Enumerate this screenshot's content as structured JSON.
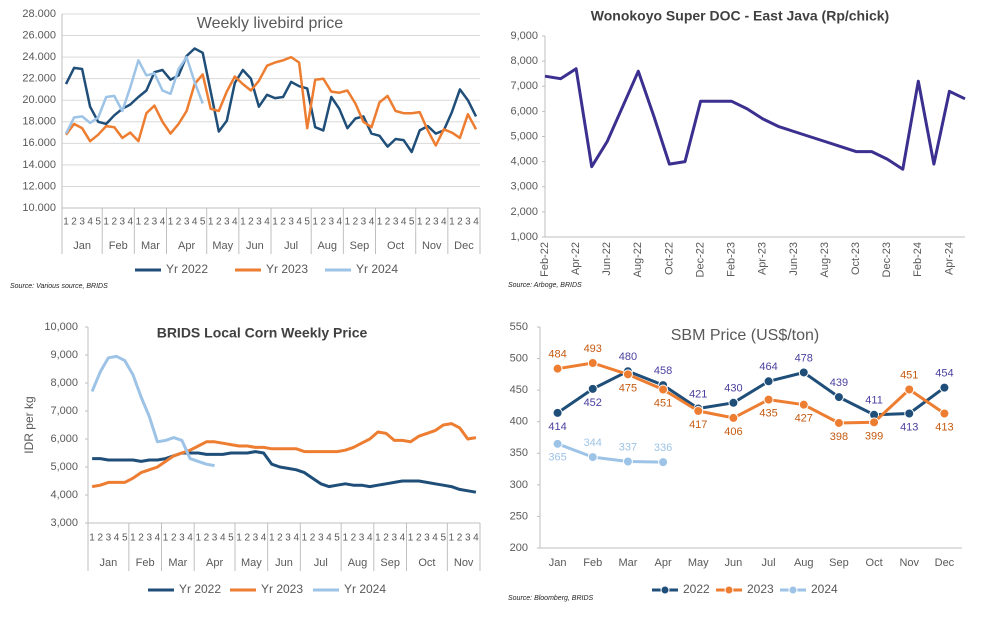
{
  "chart_data": [
    {
      "type": "line",
      "title": "Weekly livebird price",
      "categories": [
        "1",
        "2",
        "3",
        "4",
        "5",
        "1",
        "2",
        "3",
        "4",
        "1",
        "2",
        "3",
        "4",
        "1",
        "2",
        "3",
        "4",
        "5",
        "1",
        "2",
        "3",
        "4",
        "1",
        "2",
        "3",
        "4",
        "1",
        "2",
        "3",
        "4",
        "5",
        "1",
        "2",
        "3",
        "4",
        "1",
        "2",
        "3",
        "4",
        "1",
        "2",
        "3",
        "4",
        "5",
        "1",
        "2",
        "3",
        "4",
        "1",
        "2",
        "3",
        "4"
      ],
      "month_groups": [
        {
          "label": "Jan",
          "count": 5
        },
        {
          "label": "Feb",
          "count": 4
        },
        {
          "label": "Mar",
          "count": 4
        },
        {
          "label": "Apr",
          "count": 5
        },
        {
          "label": "May",
          "count": 4
        },
        {
          "label": "Jun",
          "count": 4
        },
        {
          "label": "Jul",
          "count": 5
        },
        {
          "label": "Aug",
          "count": 4
        },
        {
          "label": "Sep",
          "count": 4
        },
        {
          "label": "Oct",
          "count": 5
        },
        {
          "label": "Nov",
          "count": 4
        },
        {
          "label": "Dec",
          "count": 4
        }
      ],
      "series": [
        {
          "name": "Yr 2022",
          "color": "#1f4e79",
          "values": [
            21500,
            23000,
            22900,
            19400,
            18000,
            17800,
            18600,
            19200,
            19600,
            20300,
            20900,
            22600,
            22800,
            21900,
            22300,
            24100,
            24800,
            24400,
            20800,
            17100,
            18100,
            21600,
            22800,
            22000,
            19400,
            20500,
            20200,
            20300,
            21700,
            21300,
            21100,
            17500,
            17200,
            20300,
            19200,
            17400,
            18300,
            18500,
            16900,
            16700,
            15700,
            16400,
            16300,
            15200,
            17200,
            17600,
            16900,
            17200,
            18900,
            21000,
            20000,
            18500
          ]
        },
        {
          "name": "Yr 2023",
          "color": "#ed7d31",
          "values": [
            16800,
            17800,
            17400,
            16200,
            16800,
            17600,
            17500,
            16500,
            17000,
            16200,
            18800,
            19500,
            18000,
            16900,
            17800,
            19000,
            21500,
            22400,
            19200,
            19000,
            20800,
            22200,
            21500,
            20900,
            21800,
            23200,
            23500,
            23700,
            24000,
            23500,
            17400,
            21900,
            22000,
            20800,
            20700,
            20900,
            19700,
            18000,
            17500,
            19800,
            20400,
            19000,
            18800,
            18800,
            18900,
            17200,
            15800,
            17300,
            17000,
            16500,
            18700,
            17300
          ]
        },
        {
          "name": "Yr 2024",
          "color": "#9dc3e6",
          "values": [
            16900,
            18400,
            18500,
            17900,
            18400,
            20300,
            20400,
            19000,
            21200,
            23700,
            22300,
            22500,
            20900,
            20600,
            22900,
            24000,
            21700,
            19700,
            null,
            null,
            null,
            null,
            null,
            null,
            null,
            null,
            null,
            null,
            null,
            null,
            null,
            null,
            null,
            null,
            null,
            null,
            null,
            null,
            null,
            null,
            null,
            null,
            null,
            null,
            null,
            null,
            null,
            null,
            null,
            null,
            null,
            null
          ]
        }
      ],
      "ylim": [
        10000,
        28000
      ],
      "yticks": [
        {
          "value": 10000,
          "label": "10.000"
        },
        {
          "value": 12000,
          "label": "12.000"
        },
        {
          "value": 14000,
          "label": "14.000"
        },
        {
          "value": 16000,
          "label": "16.000"
        },
        {
          "value": 18000,
          "label": "18.000"
        },
        {
          "value": 20000,
          "label": "20.000"
        },
        {
          "value": 22000,
          "label": "22.000"
        },
        {
          "value": 24000,
          "label": "24.000"
        },
        {
          "value": 26000,
          "label": "26.000"
        },
        {
          "value": 28000,
          "label": "28.000"
        }
      ],
      "grid": true,
      "legend": "bottom",
      "source": "Source: Various source, BRIDS"
    },
    {
      "type": "line",
      "title": "Wonokoyo Super DOC - East Java (Rp/chick)",
      "categories": [
        "Feb-22",
        null,
        "Apr-22",
        null,
        "Jun-22",
        null,
        "Aug-22",
        null,
        "Oct-22",
        null,
        "Dec-22",
        null,
        "Feb-23",
        null,
        "Apr-23",
        null,
        "Jun-23",
        null,
        "Aug-23",
        null,
        "Oct-23",
        null,
        "Dec-23",
        null,
        "Feb-24",
        null,
        "Apr-24",
        null
      ],
      "series": [
        {
          "color": "#3b2f8f",
          "values": [
            7400,
            7300,
            7700,
            3800,
            4800,
            6200,
            7600,
            5800,
            3900,
            4000,
            6400,
            6400,
            6400,
            6100,
            5700,
            5400,
            5200,
            5000,
            4800,
            4600,
            4400,
            4400,
            4100,
            3700,
            7200,
            3900,
            6800,
            6500
          ]
        }
      ],
      "ylim": [
        1000,
        9000
      ],
      "yticks": [
        {
          "value": 1000,
          "label": "1,000"
        },
        {
          "value": 2000,
          "label": "2,000"
        },
        {
          "value": 3000,
          "label": "3,000"
        },
        {
          "value": 4000,
          "label": "4,000"
        },
        {
          "value": 5000,
          "label": "5,000"
        },
        {
          "value": 6000,
          "label": "6,000"
        },
        {
          "value": 7000,
          "label": "7,000"
        },
        {
          "value": 8000,
          "label": "8,000"
        },
        {
          "value": 9000,
          "label": "9,000"
        }
      ],
      "grid": false,
      "source": "Source: Arboge, BRIDS"
    },
    {
      "type": "line",
      "title": "BRIDS Local Corn Weekly Price",
      "y_label": "IDR per kg",
      "categories": [
        "1",
        "2",
        "3",
        "4",
        "5",
        "1",
        "2",
        "3",
        "4",
        "1",
        "2",
        "3",
        "4",
        "1",
        "2",
        "3",
        "4",
        "5",
        "1",
        "2",
        "3",
        "4",
        "1",
        "2",
        "3",
        "4",
        "1",
        "2",
        "3",
        "4",
        "5",
        "1",
        "2",
        "3",
        "4",
        "1",
        "2",
        "3",
        "4",
        "1",
        "2",
        "3",
        "4",
        "5",
        "1",
        "2",
        "3",
        "4"
      ],
      "month_groups": [
        {
          "label": "Jan",
          "count": 5
        },
        {
          "label": "Feb",
          "count": 4
        },
        {
          "label": "Mar",
          "count": 4
        },
        {
          "label": "Apr",
          "count": 5
        },
        {
          "label": "May",
          "count": 4
        },
        {
          "label": "Jun",
          "count": 4
        },
        {
          "label": "Jul",
          "count": 5
        },
        {
          "label": "Aug",
          "count": 4
        },
        {
          "label": "Sep",
          "count": 4
        },
        {
          "label": "Oct",
          "count": 5
        },
        {
          "label": "Nov",
          "count": 4
        }
      ],
      "series": [
        {
          "name": "Yr 2022",
          "color": "#1f4e79",
          "values": [
            5300,
            5300,
            5250,
            5250,
            5250,
            5250,
            5200,
            5250,
            5250,
            5300,
            5400,
            5500,
            5500,
            5500,
            5450,
            5450,
            5450,
            5500,
            5500,
            5500,
            5550,
            5500,
            5100,
            5000,
            4950,
            4900,
            4800,
            4600,
            4400,
            4300,
            4350,
            4400,
            4350,
            4350,
            4300,
            4350,
            4400,
            4450,
            4500,
            4500,
            4500,
            4450,
            4400,
            4350,
            4300,
            4200,
            4150,
            4100
          ]
        },
        {
          "name": "Yr 2023",
          "color": "#ed7d31",
          "values": [
            4300,
            4350,
            4450,
            4450,
            4450,
            4600,
            4800,
            4900,
            5000,
            5200,
            5400,
            5500,
            5600,
            5750,
            5900,
            5900,
            5850,
            5800,
            5750,
            5750,
            5700,
            5700,
            5650,
            5650,
            5650,
            5650,
            5550,
            5550,
            5550,
            5550,
            5550,
            5600,
            5700,
            5850,
            6000,
            6250,
            6200,
            5950,
            5950,
            5900,
            6100,
            6200,
            6300,
            6500,
            6550,
            6400,
            6000,
            6050
          ]
        },
        {
          "name": "Yr 2024",
          "color": "#9dc3e6",
          "values": [
            7700,
            8400,
            8900,
            8950,
            8800,
            8300,
            7500,
            6800,
            5900,
            5950,
            6050,
            5950,
            5300,
            5200,
            5100,
            5050,
            null,
            null,
            null,
            null,
            null,
            null,
            null,
            null,
            null,
            null,
            null,
            null,
            null,
            null,
            null,
            null,
            null,
            null,
            null,
            null,
            null,
            null,
            null,
            null,
            null,
            null,
            null,
            null,
            null,
            null,
            null,
            null
          ]
        }
      ],
      "ylim": [
        3000,
        10000
      ],
      "yticks": [
        {
          "value": 3000,
          "label": "3,000"
        },
        {
          "value": 4000,
          "label": "4,000"
        },
        {
          "value": 5000,
          "label": "5,000"
        },
        {
          "value": 6000,
          "label": "6,000"
        },
        {
          "value": 7000,
          "label": "7,000"
        },
        {
          "value": 8000,
          "label": "8,000"
        },
        {
          "value": 9000,
          "label": "9,000"
        },
        {
          "value": 10000,
          "label": "10,000"
        }
      ],
      "grid": false,
      "legend": "bottom"
    },
    {
      "type": "line",
      "title": "SBM Price (US$/ton)",
      "markers": true,
      "data_labels": true,
      "categories": [
        "Jan",
        "Feb",
        "Mar",
        "Apr",
        "May",
        "Jun",
        "Jul",
        "Aug",
        "Sep",
        "Oct",
        "Nov",
        "Dec"
      ],
      "series": [
        {
          "name": "2022",
          "color": "#1f4e79",
          "label_color": "#4a3f9f",
          "values": [
            414,
            452,
            480,
            458,
            421,
            430,
            464,
            478,
            439,
            411,
            413,
            454
          ]
        },
        {
          "name": "2023",
          "color": "#ed7d31",
          "label_color": "#c55a11",
          "values": [
            484,
            493,
            475,
            451,
            417,
            406,
            435,
            427,
            398,
            399,
            451,
            413
          ]
        },
        {
          "name": "2024",
          "color": "#9dc3e6",
          "label_color": "#9dc3e6",
          "values": [
            365,
            344,
            337,
            336,
            null,
            null,
            null,
            null,
            null,
            null,
            null,
            null
          ]
        }
      ],
      "ylim": [
        200,
        550
      ],
      "yticks": [
        200,
        250,
        300,
        350,
        400,
        450,
        500,
        550
      ],
      "grid": false,
      "legend": "bottom",
      "source": "Source: Bloomberg, BRIDS"
    }
  ]
}
